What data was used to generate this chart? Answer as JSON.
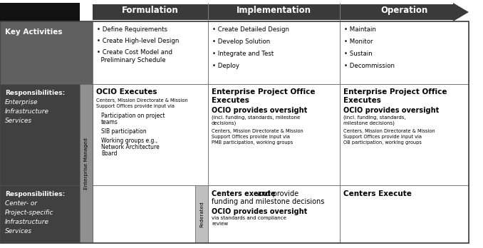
{
  "header_bg": "#3a3a3a",
  "left_col_dark_bg": "#222222",
  "left_col_mid_bg": "#484848",
  "side_label_bg": "#909090",
  "body_bg": "#ffffff",
  "arrow_color": "#3a3a3a",
  "headers": [
    "Formulation",
    "Implementation",
    "Operation"
  ],
  "row0_label": "Key Activities",
  "row1_label_bold": "Responsibilities:",
  "row1_label_italic": [
    "Enterprise",
    "Infrastructure",
    "Services"
  ],
  "row1_side": "Enterprise Managed",
  "row2_label_bold": "Responsibilities:",
  "row2_label_italic": [
    "Center- or",
    "Project-specific",
    "Infrastructure",
    "Services"
  ],
  "row2_side": "Federated",
  "r0c0": [
    "• Define Requirements",
    "• Create High-level Design",
    "• Create Cost Model and\n  Preliminary Schedule"
  ],
  "r0c1": [
    "• Create Detailed Design",
    "• Develop Solution",
    "• Integrate and Test",
    "• Deploy"
  ],
  "r0c2": [
    "• Maintain",
    "• Monitor",
    "• Sustain",
    "• Decommission"
  ],
  "r1c0_h": "OCIO Executes",
  "r1c0_s": "Centers, Mission Directorate & Mission\nSupport Offices provide input via",
  "r1c0_items": [
    "Participation on project\nteams",
    "SIB participation",
    "Working groups e.g.,\nNetwork Architecture\nBoard"
  ],
  "r1c1_h": "Enterprise Project Office\nExecutes",
  "r1c1_m": "OCIO provides oversight",
  "r1c1_s1": "(incl. funding, standards, milestone\ndecisions)",
  "r1c1_s2": "Centers, Mission Directorate & Mission\nSupport Offices provide input via\nPMB participation, working groups",
  "r1c2_h": "Enterprise Project Office\nExecutes",
  "r1c2_m": "OCIO provides oversight",
  "r1c2_s1": "(incl. funding, standards,\nmilestone decisions)",
  "r1c2_s2": "Centers, Mission Directorate & Mission\nSupport Offices provide input via\nOB participation, working groups",
  "r2c1_hb": "Centers execute",
  "r2c1_hn": " and provide\nfunding and milestone decisions",
  "r2c1_m": "OCIO provides oversight",
  "r2c1_s": "via standards and compliance\nreview",
  "r2c2": "Centers Execute"
}
